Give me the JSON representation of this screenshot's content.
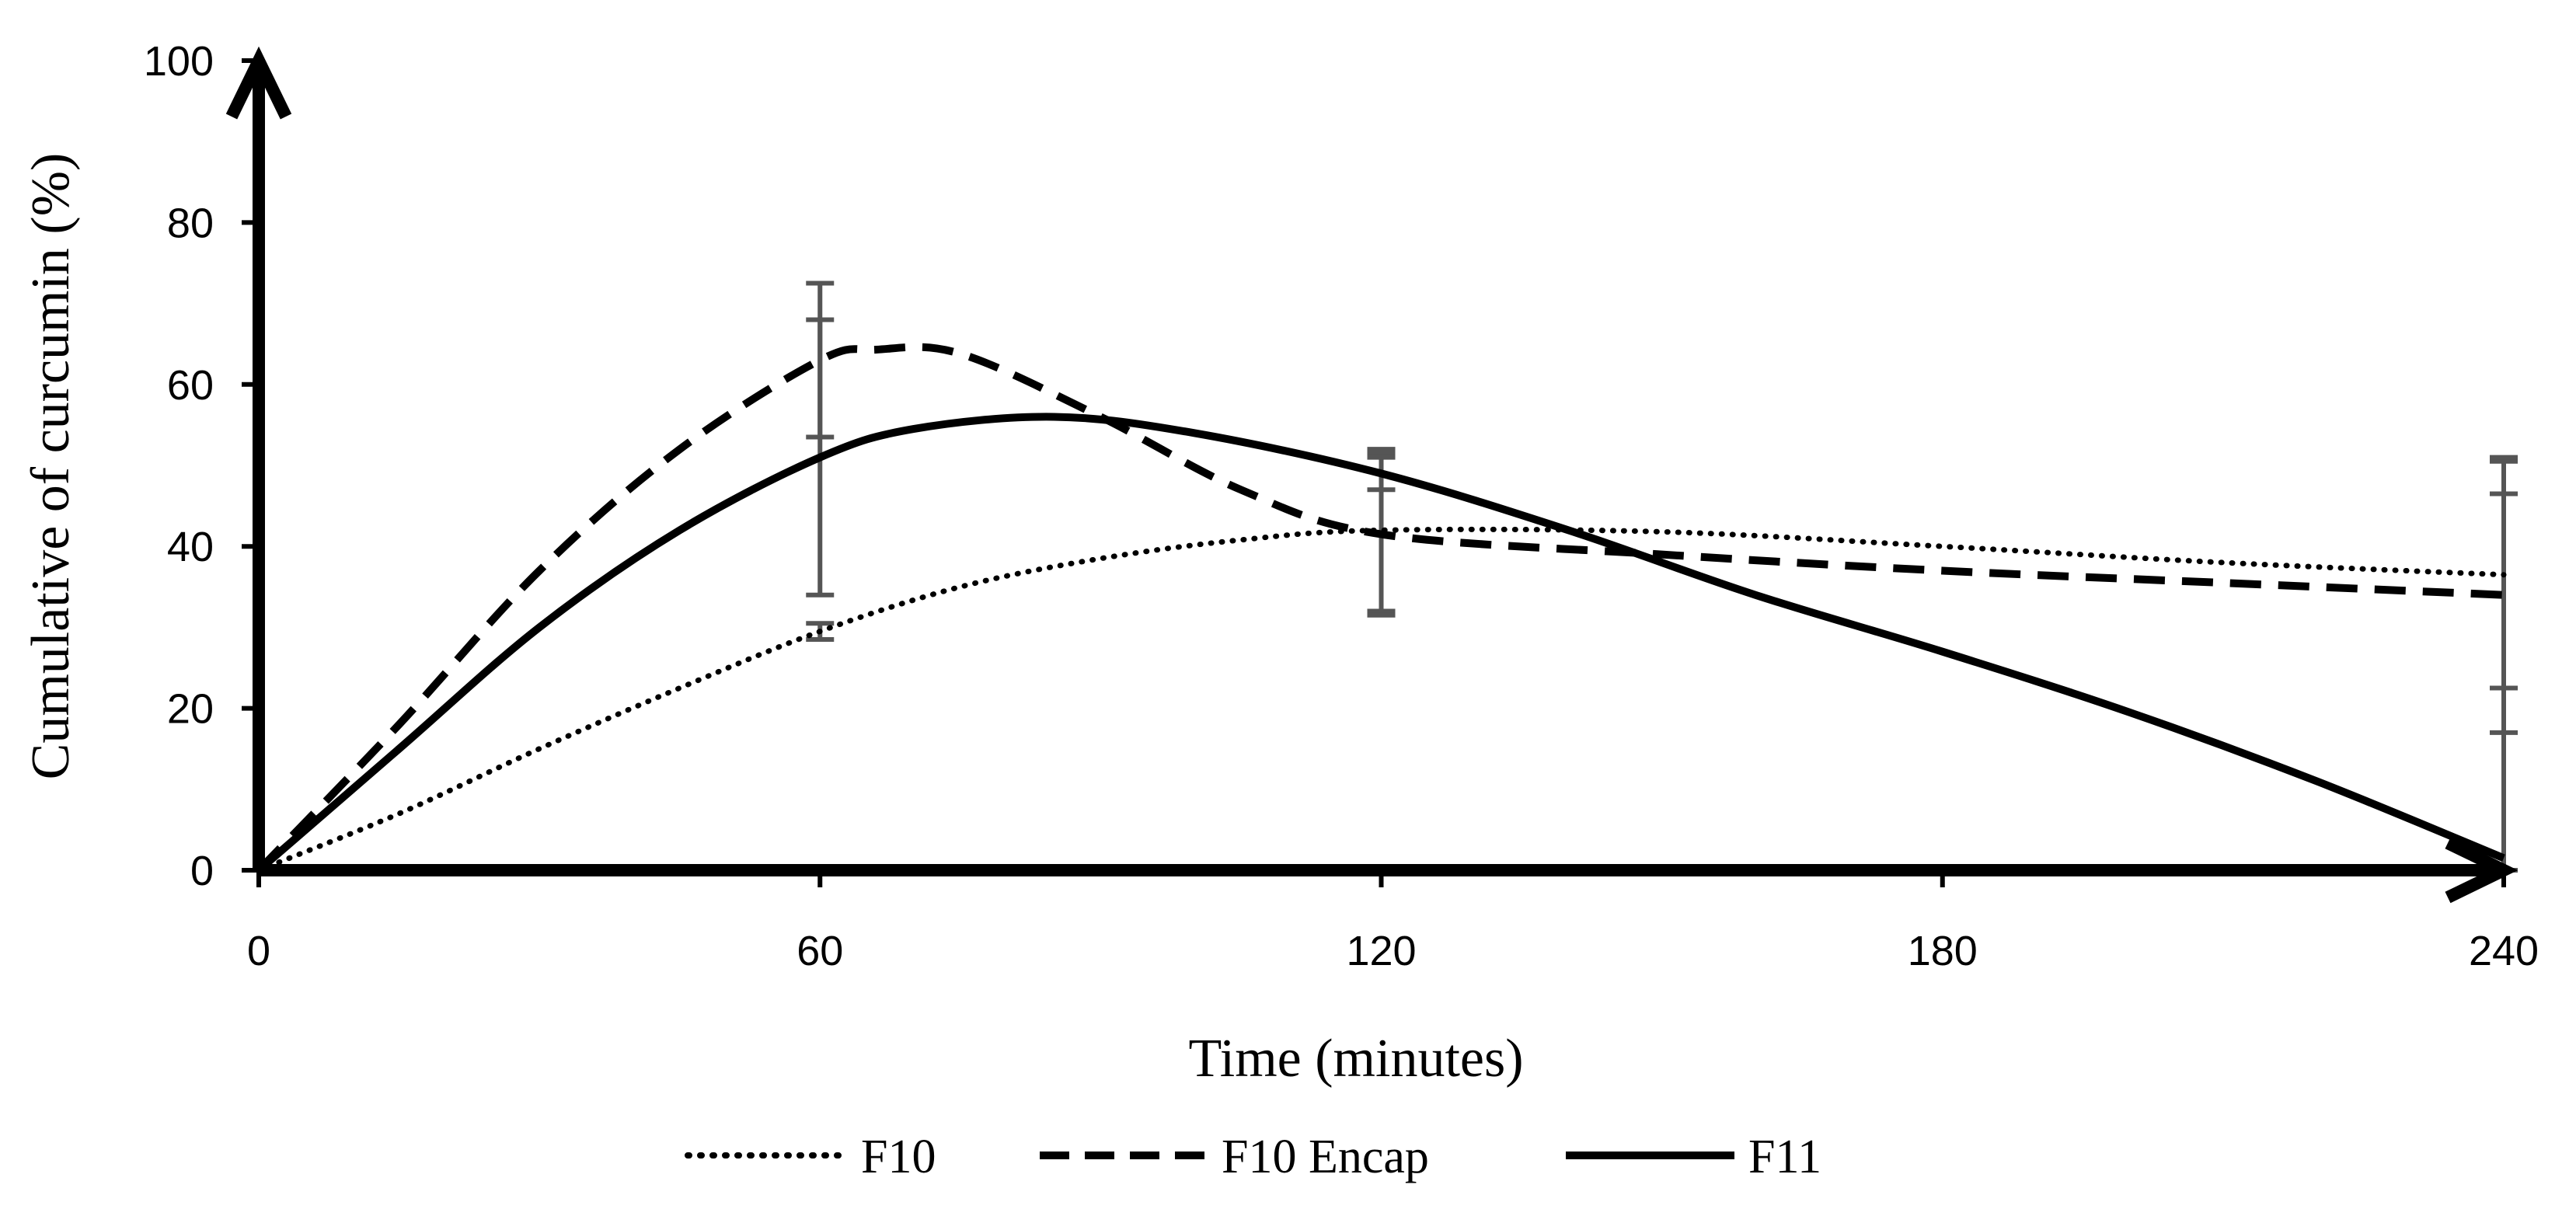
{
  "chart_data": {
    "type": "line",
    "title": "",
    "xlabel": "Time (minutes)",
    "ylabel": "Cumulative of curcumin (%)",
    "xlim": [
      0,
      240
    ],
    "ylim": [
      0,
      100
    ],
    "x_ticks": [
      0,
      60,
      120,
      180,
      240
    ],
    "y_ticks": [
      0,
      20,
      40,
      60,
      80,
      100
    ],
    "x_tick_labels": [
      "0",
      "60",
      "120",
      "180",
      "240"
    ],
    "y_tick_labels": [
      "0",
      "20",
      "40",
      "60",
      "80",
      "100"
    ],
    "grid": false,
    "legend_position": "bottom",
    "x": [
      0,
      60,
      120,
      240
    ],
    "series": [
      {
        "name": "F10",
        "style": "dotted",
        "color": "#000000",
        "values": [
          0,
          29.5,
          42,
          36.5
        ],
        "error": [
          0,
          1,
          10,
          14
        ],
        "curve": [
          [
            0,
            0
          ],
          [
            15,
            7
          ],
          [
            30,
            15
          ],
          [
            45,
            22.5
          ],
          [
            60,
            29.5
          ],
          [
            75,
            35
          ],
          [
            90,
            38.5
          ],
          [
            105,
            40.8
          ],
          [
            120,
            42
          ],
          [
            150,
            41.8
          ],
          [
            180,
            40
          ],
          [
            210,
            38
          ],
          [
            240,
            36.5
          ]
        ]
      },
      {
        "name": "F10 Encap",
        "style": "dashed",
        "color": "#000000",
        "values": [
          0,
          63,
          41.5,
          34
        ],
        "error": [
          0,
          9.5,
          10,
          17
        ],
        "curve": [
          [
            0,
            0
          ],
          [
            15,
            18
          ],
          [
            30,
            37
          ],
          [
            45,
            52
          ],
          [
            60,
            63
          ],
          [
            66,
            64.3
          ],
          [
            75,
            63.8
          ],
          [
            90,
            56
          ],
          [
            105,
            47
          ],
          [
            120,
            41.5
          ],
          [
            150,
            39
          ],
          [
            180,
            37
          ],
          [
            210,
            35.5
          ],
          [
            240,
            34
          ]
        ]
      },
      {
        "name": "F11",
        "style": "solid",
        "color": "#000000",
        "values": [
          0,
          51,
          49,
          1.5
        ],
        "error": [
          0,
          17,
          2,
          45
        ],
        "curve": [
          [
            0,
            0
          ],
          [
            15,
            15
          ],
          [
            30,
            30
          ],
          [
            45,
            42
          ],
          [
            60,
            51
          ],
          [
            70,
            54.5
          ],
          [
            85,
            56
          ],
          [
            100,
            54
          ],
          [
            120,
            49
          ],
          [
            140,
            42
          ],
          [
            160,
            34
          ],
          [
            180,
            27
          ],
          [
            200,
            19.5
          ],
          [
            220,
            11
          ],
          [
            240,
            1.5
          ]
        ]
      }
    ]
  }
}
